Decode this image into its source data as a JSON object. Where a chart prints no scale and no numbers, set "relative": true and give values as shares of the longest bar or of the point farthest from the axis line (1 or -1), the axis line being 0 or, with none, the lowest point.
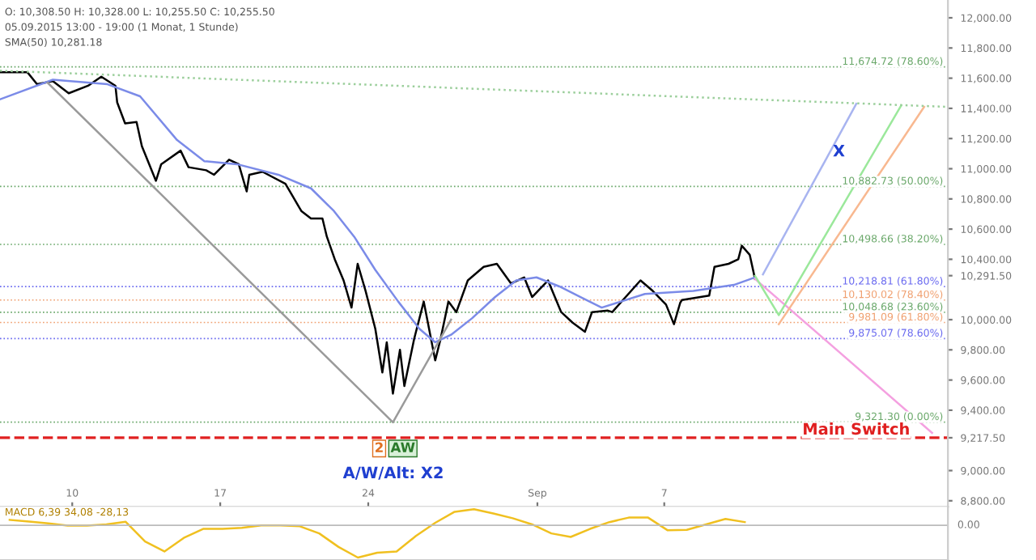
{
  "chart_data": [
    {
      "type": "line",
      "annotations": [
        "O: 10,308.50 H: 10,328.00 L: 10,255.50 C: 10,255.50",
        "05.09.2015 13:00 - 19:00 (1 Monat, 1 Stunde)",
        "SMA(50) 10,281.18",
        "A/W/Alt: X2",
        "AW",
        "2",
        "X"
      ],
      "xlim": [
        "2015-08-06T14:00",
        "2015-09-20T10:00"
      ],
      "xticks": [
        {
          "value": "2015-08-10",
          "label": "10"
        },
        {
          "value": "2015-08-17",
          "label": "17"
        },
        {
          "value": "2015-08-24",
          "label": "24"
        },
        {
          "value": "2015-09-01",
          "label": "Sep"
        },
        {
          "value": "2015-09-07",
          "label": "7"
        }
      ],
      "ylim": [
        8760,
        12118
      ],
      "yticks": [
        {
          "value": 8800,
          "label": "8,800.00"
        },
        {
          "value": 9000,
          "label": "9,000.00"
        },
        {
          "value": 9217.5,
          "label": "9,217.50"
        },
        {
          "value": 9400,
          "label": "9,400.00"
        },
        {
          "value": 9600,
          "label": "9,600.00"
        },
        {
          "value": 9800,
          "label": "9,800.00"
        },
        {
          "value": 10000,
          "label": "10,000.00"
        },
        {
          "value": 10291.5,
          "label": "10,291.50"
        },
        {
          "value": 10400,
          "label": "10,400.00"
        },
        {
          "value": 10600,
          "label": "10,600.00"
        },
        {
          "value": 10800,
          "label": "10,800.00"
        },
        {
          "value": 11000,
          "label": "11,000.00"
        },
        {
          "value": 11200,
          "label": "11,200.00"
        },
        {
          "value": 11400,
          "label": "11,400.00"
        },
        {
          "value": 11600,
          "label": "11,600.00"
        },
        {
          "value": 11800,
          "label": "11,800.00"
        },
        {
          "value": 12000,
          "label": "12,000.00"
        }
      ],
      "grid": false,
      "legend": false,
      "series": [
        {
          "color": "#000000",
          "x": [
            "2015-08-06T14:00",
            "2015-08-07T21:00",
            "2015-08-08T08:00",
            "2015-08-09T02:00",
            "2015-08-09T20:00",
            "2015-08-10T18:00",
            "2015-08-11T09:00",
            "2015-08-12T01:00",
            "2015-08-12T03:00",
            "2015-08-12T12:00",
            "2015-08-13T01:00",
            "2015-08-13T07:00",
            "2015-08-13T23:00",
            "2015-08-14T05:00",
            "2015-08-15T03:00",
            "2015-08-15T12:00",
            "2015-08-16T08:00",
            "2015-08-16T17:00",
            "2015-08-17T10:00",
            "2015-08-17T21:00",
            "2015-08-18T06:00",
            "2015-08-18T09:00",
            "2015-08-19T00:00",
            "2015-08-20T02:00",
            "2015-08-20T11:00",
            "2015-08-20T20:00",
            "2015-08-21T07:00",
            "2015-08-21T20:00",
            "2015-08-22T01:00",
            "2015-08-22T10:00",
            "2015-08-22T20:00",
            "2015-08-23T05:00",
            "2015-08-23T12:00",
            "2015-08-23T21:00",
            "2015-08-24T08:00",
            "2015-08-24T16:00",
            "2015-08-24T21:00",
            "2015-08-25T04:00",
            "2015-08-25T12:00",
            "2015-08-25T17:00",
            "2015-08-26T04:00",
            "2015-08-26T15:00",
            "2015-08-27T04:00",
            "2015-08-27T10:00",
            "2015-08-27T19:00",
            "2015-08-28T04:00",
            "2015-08-28T17:00",
            "2015-08-29T11:00",
            "2015-08-30T02:00",
            "2015-08-30T18:00",
            "2015-08-31T09:00",
            "2015-08-31T18:00",
            "2015-09-01T12:00",
            "2015-09-02T03:00",
            "2015-09-02T16:00",
            "2015-09-03T06:00",
            "2015-09-03T14:00",
            "2015-09-04T08:00",
            "2015-09-04T13:00",
            "2015-09-05T21:00",
            "2015-09-06T11:00",
            "2015-09-07T02:00",
            "2015-09-07T11:00",
            "2015-09-07T18:00",
            "2015-09-07T20:00",
            "2015-09-09T03:00",
            "2015-09-09T09:00",
            "2015-09-10T01:00",
            "2015-09-10T12:00",
            "2015-09-10T16:00",
            "2015-09-11T01:00",
            "2015-09-11T07:00"
          ],
          "values": [
            11640,
            11640,
            11560,
            11580,
            11500,
            11550,
            11610,
            11550,
            11440,
            11300,
            11310,
            11150,
            10920,
            11030,
            11120,
            11010,
            10990,
            10960,
            11060,
            11030,
            10850,
            10960,
            10980,
            10900,
            10810,
            10720,
            10670,
            10670,
            10550,
            10400,
            10260,
            10080,
            10370,
            10190,
            9940,
            9650,
            9850,
            9510,
            9800,
            9560,
            9870,
            10120,
            9730,
            9870,
            10120,
            10050,
            10260,
            10350,
            10370,
            10240,
            10280,
            10150,
            10260,
            10050,
            9980,
            9920,
            10050,
            10060,
            10050,
            10260,
            10190,
            10100,
            9970,
            10110,
            10130,
            10160,
            10350,
            10370,
            10400,
            10490,
            10430,
            10270
          ]
        },
        {
          "color": "#7b8be8",
          "x": [
            "2015-08-06T14:00",
            "2015-08-09T02:00",
            "2015-08-11T16:00",
            "2015-08-13T05:00",
            "2015-08-14T23:00",
            "2015-08-16T06:00",
            "2015-08-17T19:00",
            "2015-08-19T18:00",
            "2015-08-21T07:00",
            "2015-08-22T09:00",
            "2015-08-23T08:00",
            "2015-08-24T08:00",
            "2015-08-25T10:00",
            "2015-08-26T10:00",
            "2015-08-27T04:00",
            "2015-08-27T22:00",
            "2015-08-28T22:00",
            "2015-08-30T00:00",
            "2015-08-31T00:00",
            "2015-08-31T23:00",
            "2015-09-02T01:00",
            "2015-09-03T01:00",
            "2015-09-04T01:00",
            "2015-09-06T02:00",
            "2015-09-08T09:00",
            "2015-09-10T07:00",
            "2015-09-11T07:00"
          ],
          "values": [
            11460,
            11590,
            11560,
            11480,
            11190,
            11050,
            11030,
            10960,
            10870,
            10720,
            10550,
            10330,
            10120,
            9940,
            9850,
            9900,
            10010,
            10150,
            10260,
            10280,
            10220,
            10150,
            10080,
            10170,
            10190,
            10230,
            10280
          ]
        },
        {
          "color": "#f4a0e0",
          "x": [
            "2015-09-11T07:00",
            "2015-09-19T16:00"
          ],
          "values": [
            10270,
            9250
          ]
        },
        {
          "color": "#a8b4f0",
          "x": [
            "2015-09-11T16:00",
            "2015-09-16T02:00"
          ],
          "values": [
            10300,
            11430
          ]
        },
        {
          "color": "#9be89b",
          "x": [
            "2015-09-11T07:00",
            "2015-09-12T10:00",
            "2015-09-18T05:00"
          ],
          "values": [
            10290,
            10030,
            11420
          ]
        },
        {
          "color": "#f8b890",
          "x": [
            "2015-09-12T10:00",
            "2015-09-19T07:00"
          ],
          "values": [
            9970,
            11410
          ]
        },
        {
          "color": "#9a9a9a",
          "x": [
            "2015-08-08T20:00",
            "2015-08-25T04:00",
            "2015-08-27T22:00"
          ],
          "values": [
            11570,
            9320,
            10000
          ]
        },
        {
          "color": "#9ccf9c",
          "x": [
            "2015-08-06T14:00",
            "2015-09-20T10:00"
          ],
          "values": [
            11650,
            11410
          ],
          "line_style": "dotted"
        }
      ],
      "ref_lines": [
        {
          "axis": "y",
          "value": 11674.72,
          "label": "11,674.72 (78.60%)",
          "color": "#6aa86a",
          "line_style": "dotted"
        },
        {
          "axis": "y",
          "value": 10882.73,
          "label": "10,882.73 (50.00%)",
          "color": "#6aa86a",
          "line_style": "dotted"
        },
        {
          "axis": "y",
          "value": 10498.66,
          "label": "10,498.66 (38.20%)",
          "color": "#6aa86a",
          "line_style": "dotted"
        },
        {
          "axis": "y",
          "value": 10218.81,
          "label": "10,218.81 (61.80%)",
          "color": "#6a6af0",
          "line_style": "dotted"
        },
        {
          "axis": "y",
          "value": 10130.02,
          "label": "10,130.02 (78.40%)",
          "color": "#f0a070",
          "line_style": "dotted"
        },
        {
          "axis": "y",
          "value": 10048.68,
          "label": "10,048.68 (23.60%)",
          "color": "#6aa86a",
          "line_style": "dotted"
        },
        {
          "axis": "y",
          "value": 9981.09,
          "label": "9,981.09 (61.80%)",
          "color": "#f0a070",
          "line_style": "dotted"
        },
        {
          "axis": "y",
          "value": 9875.07,
          "label": "9,875.07 (78.60%)",
          "color": "#6a6af0",
          "line_style": "dotted"
        },
        {
          "axis": "y",
          "value": 9321.3,
          "label": "9,321.30 (0.00%)",
          "color": "#6aa86a",
          "line_style": "dotted"
        },
        {
          "axis": "y",
          "value": 9217.5,
          "label": "Main Switch",
          "color": "#e02020",
          "line_style": "dashed"
        }
      ]
    },
    {
      "type": "line",
      "relative": true,
      "annotations": [
        "MACD 6,39 34,08 -28,13",
        "0.00"
      ],
      "categories": [
        null,
        null,
        null,
        null,
        null,
        null,
        null,
        null,
        null,
        null,
        null,
        null,
        null,
        null,
        null,
        null,
        null,
        null,
        null,
        null,
        null,
        null,
        null,
        null,
        null,
        null,
        null,
        null,
        null,
        null,
        null,
        null,
        null,
        null,
        null,
        null,
        null,
        null,
        null,
        null,
        null,
        null,
        null,
        null,
        null,
        null,
        null,
        null,
        null
      ],
      "series": [
        {
          "color": "#f0c020",
          "values": [
            0.17,
            0.12,
            0.06,
            -0.01,
            -0.01,
            0.03,
            0.11,
            -0.5,
            -0.81,
            -0.39,
            -0.11,
            -0.11,
            -0.08,
            0.0,
            0.0,
            -0.03,
            -0.25,
            -0.67,
            -1,
            -0.85,
            -0.81,
            -0.33,
            0.08,
            0.42,
            0.5,
            0.37,
            0.22,
            0.03,
            -0.25,
            -0.36,
            -0.11,
            0.1,
            0.24,
            0.24,
            -0.15,
            -0.14,
            0.03,
            0.2,
            0.1,
            null,
            null,
            null,
            null,
            null,
            null,
            null,
            null,
            null,
            null
          ]
        }
      ]
    }
  ]
}
